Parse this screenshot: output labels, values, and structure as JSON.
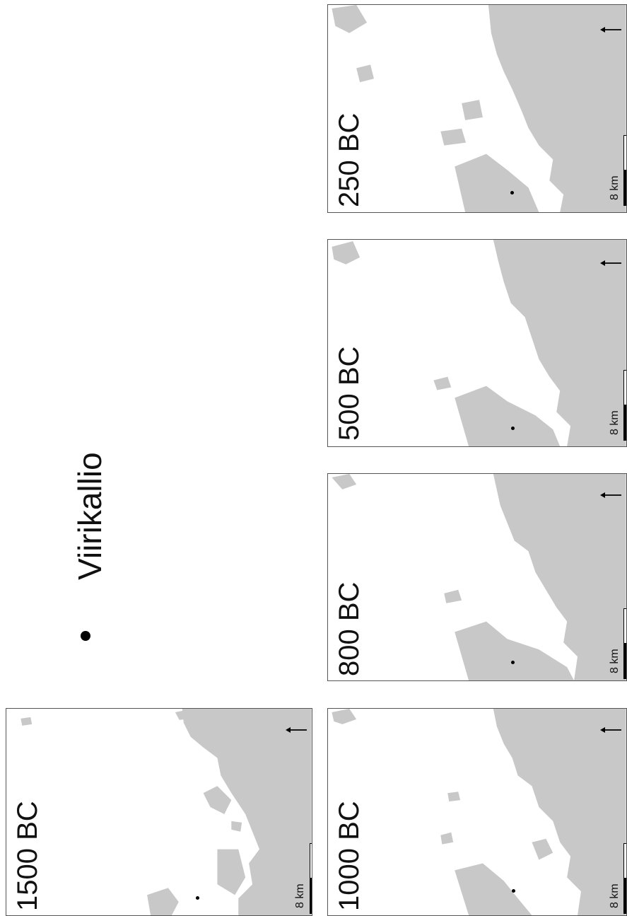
{
  "legend": {
    "icon": "site-dot-icon",
    "label": "Viirikallio"
  },
  "scale_label": "8 km",
  "colors": {
    "land": "#c8c8c8",
    "sea": "#ffffff",
    "frame": "#555555"
  },
  "panels": [
    {
      "id": "p1500",
      "period": "1500 BC"
    },
    {
      "id": "p1000",
      "period": "1000 BC"
    },
    {
      "id": "p800",
      "period": "800 BC"
    },
    {
      "id": "p500",
      "period": "500 BC"
    },
    {
      "id": "p250",
      "period": "250 BC"
    }
  ]
}
